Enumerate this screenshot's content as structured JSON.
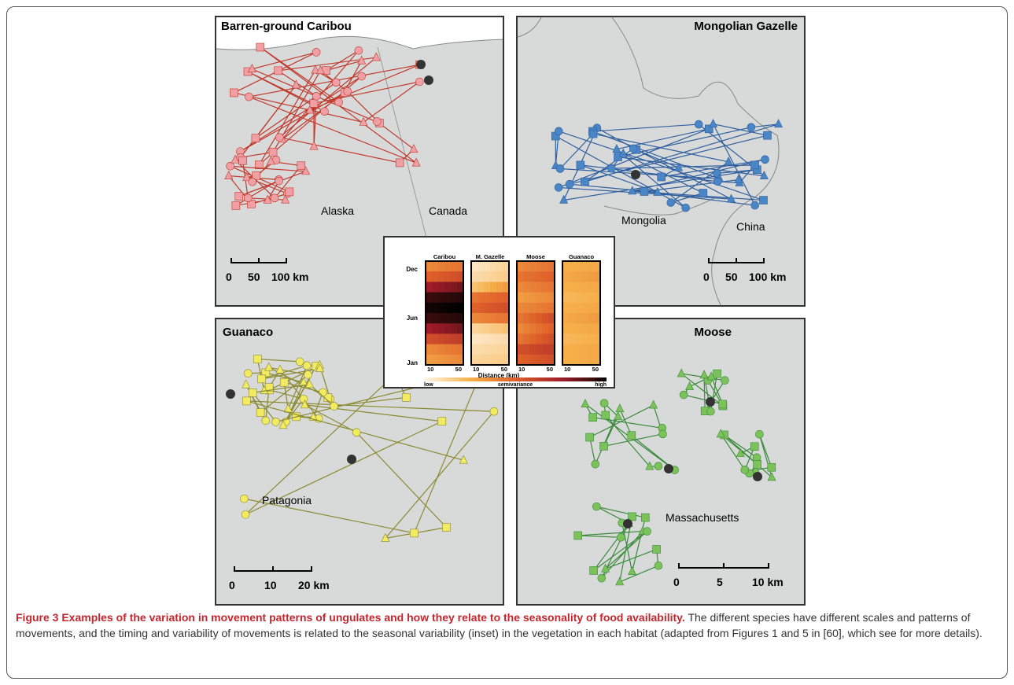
{
  "figure": {
    "panels": [
      {
        "title": "Barren-ground Caribou",
        "regions": [
          "Alaska",
          "Canada"
        ],
        "scale_ticks": [
          "0",
          "50",
          "100 km"
        ],
        "track_color": "#c0392b",
        "marker_color": "#f0a0a4"
      },
      {
        "title": "Mongolian Gazelle",
        "regions": [
          "Mongolia",
          "China"
        ],
        "scale_ticks": [
          "0",
          "50",
          "100 km"
        ],
        "track_color": "#2f5f9e",
        "marker_color": "#4a86c6"
      },
      {
        "title": "Guanaco",
        "regions": [
          "Patagonia"
        ],
        "scale_ticks": [
          "0",
          "10",
          "20 km"
        ],
        "track_color": "#8a8a30",
        "marker_color": "#f2ea60"
      },
      {
        "title": "Moose",
        "regions": [
          "Massachusetts"
        ],
        "scale_ticks": [
          "0",
          "5",
          "10 km"
        ],
        "track_color": "#3a8a3a",
        "marker_color": "#7cc25a"
      }
    ],
    "inset": {
      "columns": [
        "Caribou",
        "M. Gazelle",
        "Moose",
        "Guanaco"
      ],
      "y_ticks": [
        "Dec",
        "Jun",
        "Jan"
      ],
      "x_ticks": [
        "10",
        "50"
      ],
      "xlabel": "Distance (km)",
      "legend_low": "low",
      "legend_mid": "semivariance",
      "legend_high": "high"
    },
    "caption": {
      "title": "Figure 3 Examples of the variation in movement patterns of ungulates and how they relate to the seasonality of food availability.",
      "body": " The different species have different scales and patterns of movements, and the timing and variability of movements is related to the seasonal variability (inset) in the vegetation in each habitat (adapted from Figures 1 and 5 in [60], which see for more details)."
    }
  }
}
